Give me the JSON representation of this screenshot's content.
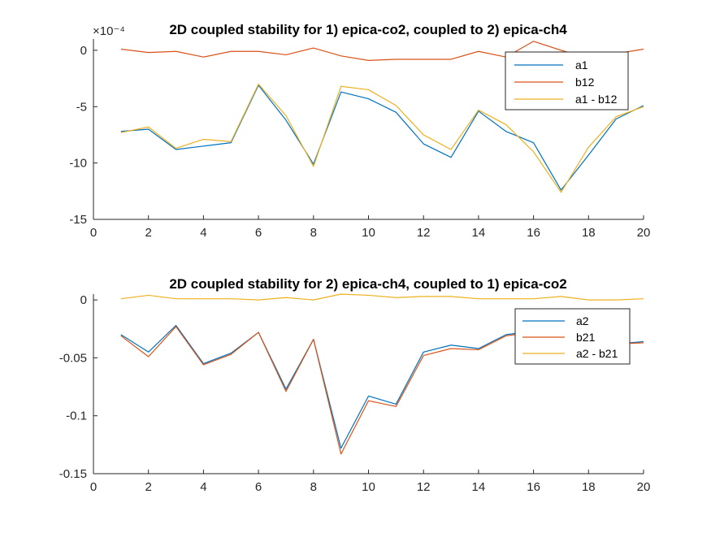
{
  "chart_data": [
    {
      "type": "line",
      "title": "2D coupled stability for 1) epica-co2, coupled to 2) epica-ch4",
      "exponent_label": "×10⁻⁴",
      "xlim": [
        0,
        20
      ],
      "ylim": [
        -15,
        1
      ],
      "x_ticks": [
        0,
        2,
        4,
        6,
        8,
        10,
        12,
        14,
        16,
        18,
        20
      ],
      "y_ticks": [
        0,
        -5,
        -10,
        -15
      ],
      "legend_position": "top-right",
      "x": [
        1,
        2,
        3,
        4,
        5,
        6,
        7,
        8,
        9,
        10,
        11,
        12,
        13,
        14,
        15,
        16,
        17,
        18,
        19,
        20
      ],
      "series": [
        {
          "name": "a1",
          "color": "#0072BD",
          "values": [
            -7.2,
            -7.0,
            -8.8,
            -8.5,
            -8.2,
            -3.1,
            -6.2,
            -10.1,
            -3.7,
            -4.3,
            -5.5,
            -8.3,
            -9.5,
            -5.4,
            -7.2,
            -8.2,
            -12.4,
            -9.3,
            -6.1,
            -4.9
          ]
        },
        {
          "name": "b12",
          "color": "#D95319",
          "values": [
            0.1,
            -0.2,
            -0.1,
            -0.6,
            -0.1,
            -0.1,
            -0.4,
            0.2,
            -0.5,
            -0.9,
            -0.8,
            -0.8,
            -0.8,
            -0.1,
            -0.6,
            0.8,
            0.0,
            -0.7,
            -0.3,
            0.1
          ]
        },
        {
          "name": "a1 - b12",
          "color": "#EDB120",
          "values": [
            -7.3,
            -6.8,
            -8.7,
            -7.9,
            -8.1,
            -3.0,
            -5.8,
            -10.3,
            -3.2,
            -3.5,
            -4.9,
            -7.5,
            -8.8,
            -5.3,
            -6.6,
            -9.0,
            -12.6,
            -8.6,
            -5.9,
            -5.0
          ]
        }
      ]
    },
    {
      "type": "line",
      "title": "2D coupled stability for 2) epica-ch4, coupled to 1) epica-co2",
      "xlim": [
        0,
        20
      ],
      "ylim": [
        -0.15,
        0.005
      ],
      "x_ticks": [
        0,
        2,
        4,
        6,
        8,
        10,
        12,
        14,
        16,
        18,
        20
      ],
      "y_ticks": [
        0,
        -0.05,
        -0.1,
        -0.15
      ],
      "legend_position": "top-right",
      "x": [
        1,
        2,
        3,
        4,
        5,
        6,
        7,
        8,
        9,
        10,
        11,
        12,
        13,
        14,
        15,
        16,
        17,
        18,
        19,
        20
      ],
      "series": [
        {
          "name": "a2",
          "color": "#0072BD",
          "values": [
            -0.03,
            -0.045,
            -0.022,
            -0.055,
            -0.046,
            -0.028,
            -0.077,
            -0.034,
            -0.128,
            -0.083,
            -0.09,
            -0.045,
            -0.039,
            -0.042,
            -0.03,
            -0.027,
            -0.022,
            -0.028,
            -0.038,
            -0.036
          ]
        },
        {
          "name": "b21",
          "color": "#D95319",
          "values": [
            -0.031,
            -0.049,
            -0.023,
            -0.056,
            -0.047,
            -0.028,
            -0.079,
            -0.034,
            -0.133,
            -0.087,
            -0.092,
            -0.048,
            -0.042,
            -0.043,
            -0.031,
            -0.028,
            -0.025,
            -0.028,
            -0.038,
            -0.037
          ]
        },
        {
          "name": "a2 - b21",
          "color": "#EDB120",
          "values": [
            0.001,
            0.004,
            0.001,
            0.001,
            0.001,
            0.0,
            0.002,
            0.0,
            0.005,
            0.004,
            0.002,
            0.003,
            0.003,
            0.001,
            0.001,
            0.001,
            0.003,
            0.0,
            0.0,
            0.001
          ]
        }
      ]
    }
  ]
}
